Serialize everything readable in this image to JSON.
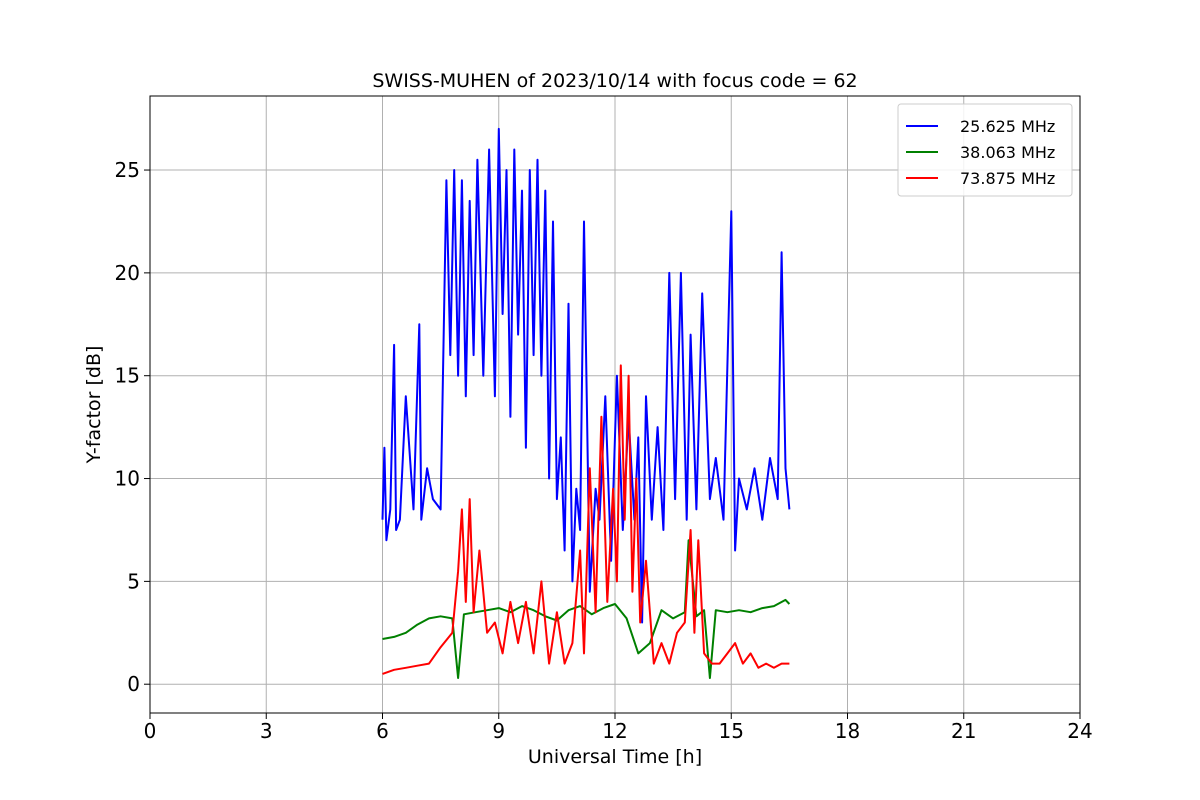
{
  "chart_data": {
    "type": "line",
    "title": "SWISS-MUHEN of 2023/10/14 with focus code = 62",
    "xlabel": "Universal Time [h]",
    "ylabel": "Y-factor [dB]",
    "xlim": [
      0,
      24
    ],
    "ylim": [
      -1.4,
      28.6
    ],
    "xticks": [
      0,
      3,
      6,
      9,
      12,
      15,
      18,
      21,
      24
    ],
    "yticks": [
      0,
      5,
      10,
      15,
      20,
      25
    ],
    "grid": true,
    "legend_position": "top-right",
    "series": [
      {
        "name": "25.625 MHz",
        "color": "#0000ff",
        "x": [
          6.0,
          6.05,
          6.1,
          6.2,
          6.3,
          6.35,
          6.45,
          6.6,
          6.8,
          6.95,
          7.0,
          7.15,
          7.3,
          7.5,
          7.65,
          7.75,
          7.85,
          7.95,
          8.05,
          8.15,
          8.25,
          8.35,
          8.45,
          8.6,
          8.75,
          8.9,
          9.0,
          9.1,
          9.2,
          9.3,
          9.4,
          9.5,
          9.6,
          9.7,
          9.8,
          9.9,
          10.0,
          10.1,
          10.2,
          10.3,
          10.4,
          10.5,
          10.6,
          10.7,
          10.8,
          10.9,
          11.0,
          11.1,
          11.2,
          11.35,
          11.5,
          11.6,
          11.75,
          11.9,
          12.05,
          12.2,
          12.35,
          12.5,
          12.6,
          12.7,
          12.8,
          12.95,
          13.1,
          13.25,
          13.4,
          13.55,
          13.7,
          13.85,
          13.95,
          14.1,
          14.25,
          14.45,
          14.6,
          14.8,
          15.0,
          15.1,
          15.2,
          15.4,
          15.6,
          15.8,
          16.0,
          16.2,
          16.3,
          16.4,
          16.5
        ],
        "values": [
          8.0,
          11.5,
          7.0,
          8.5,
          16.5,
          7.5,
          8.0,
          14.0,
          8.5,
          17.5,
          8.0,
          10.5,
          9.0,
          8.5,
          24.5,
          16.0,
          25.0,
          15.0,
          24.5,
          14.0,
          23.5,
          16.0,
          25.5,
          15.0,
          26.0,
          14.0,
          27.0,
          18.0,
          25.0,
          13.0,
          26.0,
          17.0,
          24.0,
          11.5,
          25.0,
          16.0,
          25.5,
          15.0,
          24.0,
          10.0,
          22.5,
          9.0,
          12.0,
          6.5,
          18.5,
          5.0,
          9.5,
          7.5,
          22.5,
          4.5,
          9.5,
          8.0,
          14.0,
          6.0,
          15.0,
          7.5,
          13.0,
          8.0,
          12.0,
          3.0,
          14.0,
          8.0,
          12.5,
          7.5,
          20.0,
          9.0,
          20.0,
          8.0,
          17.0,
          8.5,
          19.0,
          9.0,
          11.0,
          8.0,
          23.0,
          6.5,
          10.0,
          8.5,
          10.5,
          8.0,
          11.0,
          9.0,
          21.0,
          10.5,
          8.5
        ]
      },
      {
        "name": "38.063 MHz",
        "color": "#008000",
        "x": [
          6.0,
          6.3,
          6.6,
          6.9,
          7.2,
          7.5,
          7.8,
          7.95,
          8.1,
          8.4,
          8.7,
          9.0,
          9.3,
          9.6,
          9.9,
          10.2,
          10.5,
          10.8,
          11.1,
          11.4,
          11.7,
          12.0,
          12.3,
          12.6,
          12.9,
          13.2,
          13.5,
          13.8,
          13.9,
          14.1,
          14.3,
          14.45,
          14.6,
          14.9,
          15.2,
          15.5,
          15.8,
          16.1,
          16.4,
          16.5
        ],
        "values": [
          2.2,
          2.3,
          2.5,
          2.9,
          3.2,
          3.3,
          3.2,
          0.3,
          3.4,
          3.5,
          3.6,
          3.7,
          3.5,
          3.8,
          3.6,
          3.3,
          3.1,
          3.6,
          3.8,
          3.4,
          3.7,
          3.9,
          3.2,
          1.5,
          2.0,
          3.6,
          3.2,
          3.5,
          7.0,
          3.3,
          3.6,
          0.3,
          3.6,
          3.5,
          3.6,
          3.5,
          3.7,
          3.8,
          4.1,
          3.9
        ]
      },
      {
        "name": "73.875 MHz",
        "color": "#ff0000",
        "x": [
          6.0,
          6.3,
          6.6,
          6.9,
          7.2,
          7.5,
          7.8,
          7.95,
          8.05,
          8.15,
          8.25,
          8.35,
          8.5,
          8.7,
          8.9,
          9.1,
          9.3,
          9.5,
          9.7,
          9.9,
          10.1,
          10.3,
          10.5,
          10.7,
          10.9,
          11.1,
          11.2,
          11.35,
          11.5,
          11.65,
          11.8,
          11.95,
          12.05,
          12.15,
          12.25,
          12.35,
          12.45,
          12.55,
          12.65,
          12.8,
          13.0,
          13.2,
          13.4,
          13.6,
          13.8,
          13.95,
          14.05,
          14.15,
          14.3,
          14.5,
          14.7,
          14.9,
          15.1,
          15.3,
          15.5,
          15.7,
          15.9,
          16.1,
          16.3,
          16.5
        ],
        "values": [
          0.5,
          0.7,
          0.8,
          0.9,
          1.0,
          1.8,
          2.5,
          5.5,
          8.5,
          4.0,
          9.0,
          3.5,
          6.5,
          2.5,
          3.0,
          1.5,
          4.0,
          2.0,
          4.0,
          1.5,
          5.0,
          1.0,
          3.5,
          1.0,
          2.0,
          6.5,
          1.5,
          10.5,
          3.5,
          13.0,
          4.0,
          9.5,
          5.0,
          15.5,
          8.0,
          15.0,
          4.5,
          10.0,
          3.0,
          6.0,
          1.0,
          2.0,
          1.0,
          2.5,
          3.0,
          7.5,
          2.5,
          7.0,
          1.5,
          1.0,
          1.0,
          1.5,
          2.0,
          1.0,
          1.5,
          0.8,
          1.0,
          0.8,
          1.0,
          1.0
        ]
      }
    ]
  }
}
